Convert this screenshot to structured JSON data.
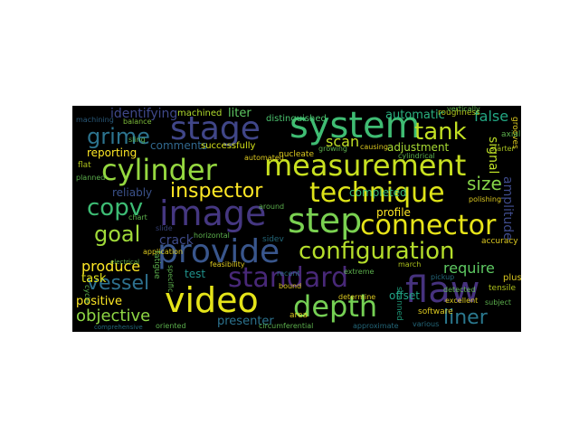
{
  "wordcloud": {
    "background": "#000000",
    "words": {
      "system": "system",
      "measurement": "measurement",
      "cylinder": "cylinder",
      "technique": "technique",
      "stage": "stage",
      "image": "image",
      "provide": "provide",
      "video": "video",
      "flaw": "flaw",
      "depth": "depth",
      "step": "step",
      "connector": "connector",
      "configuration": "configuration",
      "standard": "standard",
      "tank": "tank",
      "inspector": "inspector",
      "grime": "grime",
      "copv": "copv",
      "goal": "goal",
      "vessel": "vessel",
      "liner": "liner",
      "objective": "objective",
      "produce": "produce",
      "require": "require",
      "size": "size",
      "crack": "crack",
      "scan": "scan",
      "false": "false",
      "automatic": "automatic",
      "identifying": "identifying",
      "reporting": "reporting",
      "comments": "comments",
      "reliably": "reliably",
      "task": "task",
      "positive": "positive",
      "presenter": "presenter",
      "liter": "liter",
      "test": "test",
      "profile": "profile",
      "offset": "offset",
      "amplitude": "amplitude",
      "signal": "signal",
      "adjustment": "adjustment",
      "completed": "completed",
      "successfully": "successfully",
      "distinguished": "distinguished",
      "machined": "machined",
      "machining": "machining",
      "balance": "balance",
      "roughness": "roughness",
      "grooves": "grooves",
      "axial": "axial",
      "starter": "starter",
      "polishing": "polishing",
      "accuracy": "accuracy",
      "tensile": "tensile",
      "subject": "subject",
      "various": "various",
      "software": "software",
      "scanned": "scanned",
      "circumferential": "circumferential",
      "area": "area",
      "determine": "determine",
      "extreme": "extreme",
      "recent": "recent",
      "bound": "bound",
      "detected": "detected",
      "excellent": "excellent",
      "pickup": "pickup",
      "march": "march",
      "approximate": "approximate",
      "application": "application",
      "chart": "chart",
      "planned": "planned",
      "flat": "flat",
      "fatigue": "fatigue",
      "cycle": "cycle",
      "comprehensive": "comprehensive",
      "oriented": "oriented",
      "around": "around",
      "causing": "causing",
      "nucleate": "nucleate",
      "automated": "automated",
      "sidev": "sidev",
      "slide": "slide",
      "feasibility": "feasibility",
      "horizontal": "horizontal",
      "cylindrical": "cylindrical",
      "electrical": "electrical",
      "specific": "specific",
      "plus": "plus",
      "vertically": "vertically",
      "growing": "growing",
      "sling": "sling"
    }
  }
}
